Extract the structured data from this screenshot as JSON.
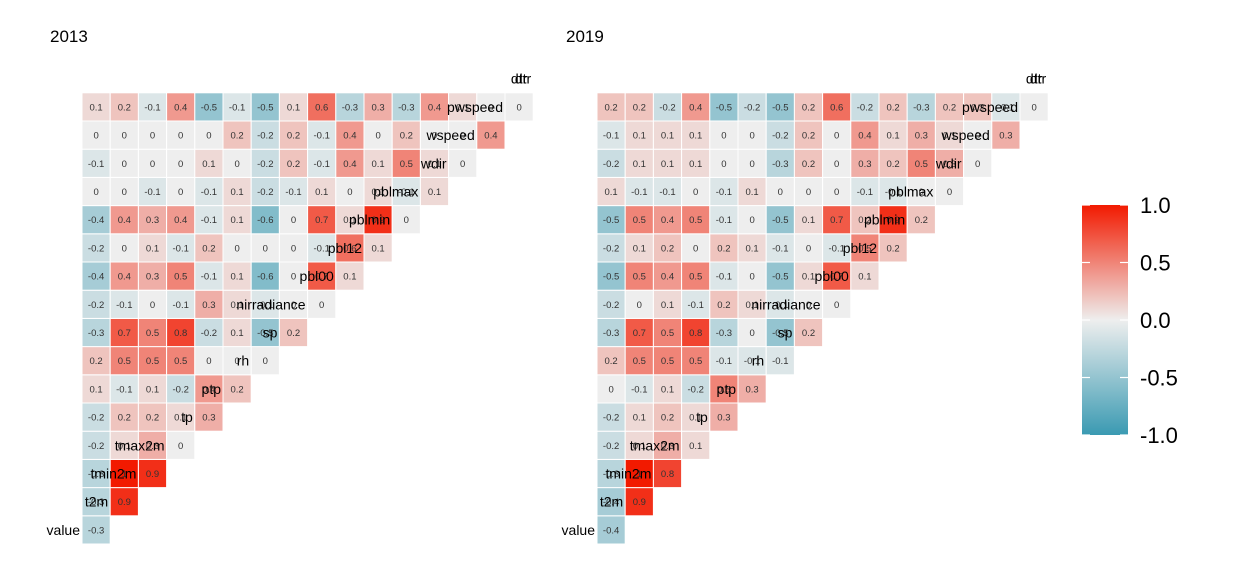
{
  "chart_data": {
    "type": "heatmap",
    "variables": [
      "value",
      "t2m",
      "tmin2m",
      "tmax2m",
      "tp",
      "ptp",
      "rh",
      "sp",
      "nirradiance",
      "pbl00",
      "pbl12",
      "pblmin",
      "pblmax",
      "wdir",
      "wspeed",
      "pwspeed",
      "dtr"
    ],
    "panels": [
      {
        "title": "2013",
        "rows": [
          [
            "-0.3"
          ],
          [
            "-0.3",
            "0.9"
          ],
          [
            "-0.3",
            "1",
            "0.9"
          ],
          [
            "-0.2",
            "0.1",
            "0.3",
            "0"
          ],
          [
            "-0.2",
            "0.2",
            "0.2",
            "0.1",
            "0.3"
          ],
          [
            "0.1",
            "-0.1",
            "0.1",
            "-0.2",
            "0.4",
            "0.2"
          ],
          [
            "0.2",
            "0.5",
            "0.5",
            "0.5",
            "0",
            "0",
            "0"
          ],
          [
            "-0.3",
            "0.7",
            "0.5",
            "0.8",
            "-0.2",
            "0.1",
            "-0.5",
            "0.2"
          ],
          [
            "-0.2",
            "-0.1",
            "0",
            "-0.1",
            "0.3",
            "0.1",
            "-0.1",
            "0",
            "0"
          ],
          [
            "-0.4",
            "0.4",
            "0.3",
            "0.5",
            "-0.1",
            "0.1",
            "-0.6",
            "0",
            "0.7",
            "0.1"
          ],
          [
            "-0.2",
            "0",
            "0.1",
            "-0.1",
            "0.2",
            "0",
            "0",
            "0",
            "-0.1",
            "0.6",
            "0.1"
          ],
          [
            "-0.4",
            "0.4",
            "0.3",
            "0.4",
            "-0.1",
            "0.1",
            "-0.6",
            "0",
            "0.7",
            "0.1",
            "0.9",
            "0"
          ],
          [
            "0",
            "0",
            "-0.1",
            "0",
            "-0.1",
            "0.1",
            "-0.2",
            "-0.1",
            "0.1",
            "0",
            "0.1",
            "-0.1",
            "0.1"
          ],
          [
            "-0.1",
            "0",
            "0",
            "0",
            "0.1",
            "0",
            "-0.2",
            "0.2",
            "-0.1",
            "0.4",
            "0.1",
            "0.5",
            "0.1",
            "0"
          ],
          [
            "0",
            "0",
            "0",
            "0",
            "0",
            "0.2",
            "-0.2",
            "0.2",
            "-0.1",
            "0.4",
            "0",
            "0.2",
            "0",
            "0",
            "0.4"
          ],
          [
            "0.1",
            "0.2",
            "-0.1",
            "0.4",
            "-0.5",
            "-0.1",
            "-0.5",
            "0.1",
            "0.6",
            "-0.3",
            "0.3",
            "-0.3",
            "0.4",
            "0.1",
            "0",
            "0"
          ]
        ]
      },
      {
        "title": "2019",
        "rows": [
          [
            "-0.4"
          ],
          [
            "-0.4",
            "0.9"
          ],
          [
            "-0.3",
            "1",
            "0.8"
          ],
          [
            "-0.2",
            "0.1",
            "0.3",
            "0.1"
          ],
          [
            "-0.2",
            "0.1",
            "0.2",
            "0.1",
            "0.3"
          ],
          [
            "0",
            "-0.1",
            "0.1",
            "-0.2",
            "0.5",
            "0.3"
          ],
          [
            "0.2",
            "0.5",
            "0.5",
            "0.5",
            "-0.1",
            "-0.1",
            "-0.1"
          ],
          [
            "-0.3",
            "0.7",
            "0.5",
            "0.8",
            "-0.3",
            "0",
            "-0.5",
            "0.2"
          ],
          [
            "-0.2",
            "0",
            "0.1",
            "-0.1",
            "0.2",
            "0.1",
            "-0.1",
            "0",
            "0"
          ],
          [
            "-0.5",
            "0.5",
            "0.4",
            "0.5",
            "-0.1",
            "0",
            "-0.5",
            "0.1",
            "0.7",
            "0.1"
          ],
          [
            "-0.2",
            "0.1",
            "0.2",
            "0",
            "0.2",
            "0.1",
            "-0.1",
            "0",
            "-0.1",
            "0.5",
            "0.2"
          ],
          [
            "-0.5",
            "0.5",
            "0.4",
            "0.5",
            "-0.1",
            "0",
            "-0.5",
            "0.1",
            "0.7",
            "0.2",
            "0.9",
            "0.2"
          ],
          [
            "0.1",
            "-0.1",
            "-0.1",
            "0",
            "-0.1",
            "0.1",
            "0",
            "0",
            "0",
            "-0.1",
            "-0.1",
            "0",
            "0"
          ],
          [
            "-0.2",
            "0.1",
            "0.1",
            "0.1",
            "0",
            "0",
            "-0.3",
            "0.2",
            "0",
            "0.3",
            "0.2",
            "0.5",
            "0.3",
            "0"
          ],
          [
            "-0.1",
            "0.1",
            "0.1",
            "0.1",
            "0",
            "0",
            "-0.2",
            "0.2",
            "0",
            "0.4",
            "0.1",
            "0.3",
            "0.1",
            "0",
            "0.3"
          ],
          [
            "0.2",
            "0.2",
            "-0.2",
            "0.4",
            "-0.5",
            "-0.2",
            "-0.5",
            "0.2",
            "0.6",
            "-0.2",
            "0.2",
            "-0.3",
            "0.2",
            "0.2",
            "-0.1",
            "0"
          ]
        ]
      }
    ],
    "legend": {
      "ticks": [
        "1.0",
        "0.5",
        "0.0",
        "-0.5",
        "-1.0"
      ],
      "range": [
        -1,
        1
      ],
      "colors": {
        "low": "#3a9ab2",
        "mid": "#eeeeee",
        "high": "#f21a00"
      },
      "placement": "right"
    }
  }
}
